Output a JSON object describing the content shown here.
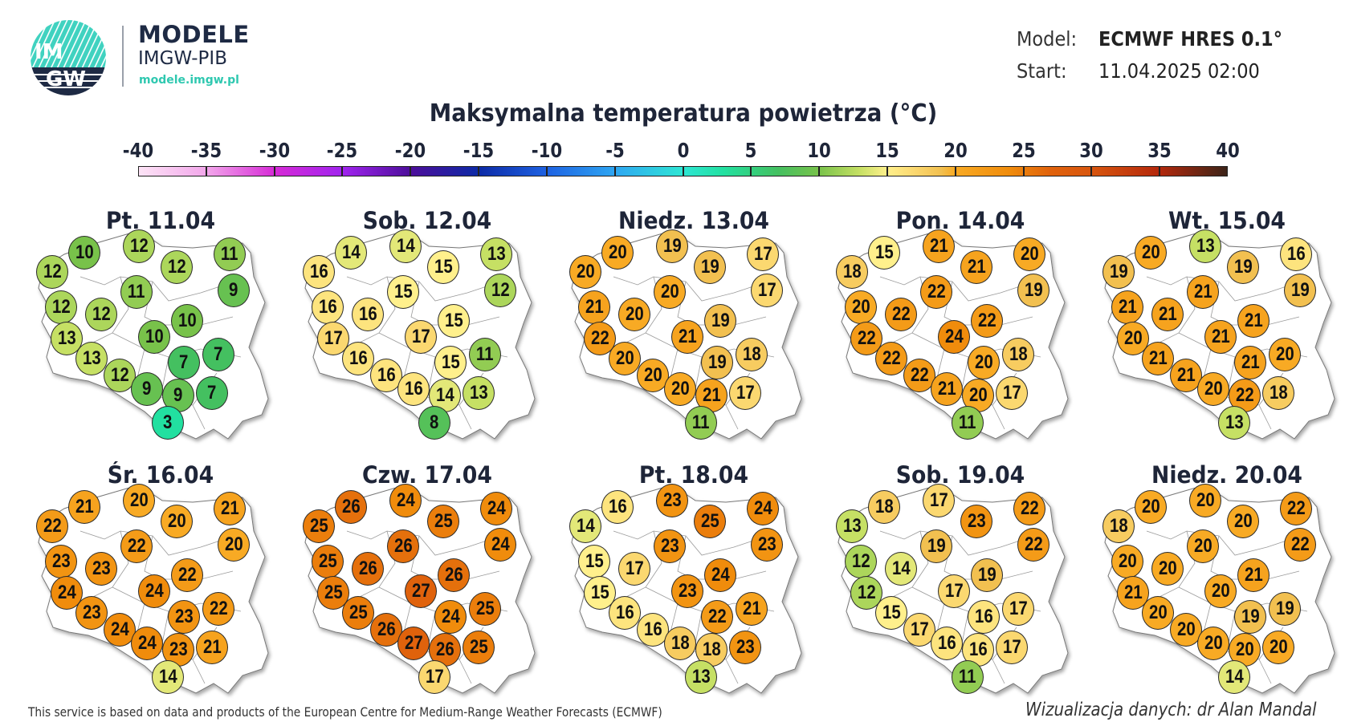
{
  "brand": {
    "logo_text_top": "IM",
    "logo_text_bottom": "GW",
    "title": "MODELE",
    "subtitle": "IMGW-PIB",
    "url": "modele.imgw.pl",
    "colors": {
      "navy": "#1e2a44",
      "teal": "#40d2c0"
    }
  },
  "meta": {
    "model_label": "Model:",
    "model_value": "ECMWF HRES 0.1°",
    "start_label": "Start:",
    "start_value": "11.04.2025 02:00"
  },
  "chart_data": {
    "type": "map-station-values",
    "title": "Maksymalna temperatura powietrza (°C)",
    "colorbar": {
      "range": [
        -40,
        40
      ],
      "ticks": [
        "-40",
        "-35",
        "-30",
        "-25",
        "-20",
        "-15",
        "-10",
        "-5",
        "0",
        "5",
        "10",
        "15",
        "20",
        "25",
        "30",
        "35",
        "40"
      ],
      "stops": [
        {
          "v": -40,
          "c": "#fde4f6"
        },
        {
          "v": -35,
          "c": "#f2a6ea"
        },
        {
          "v": -30,
          "c": "#d62ad6"
        },
        {
          "v": -25,
          "c": "#a024ee"
        },
        {
          "v": -20,
          "c": "#4c0e9a"
        },
        {
          "v": -15,
          "c": "#0c2aa6"
        },
        {
          "v": -10,
          "c": "#1e62e2"
        },
        {
          "v": -5,
          "c": "#2ea6f2"
        },
        {
          "v": 0,
          "c": "#2ee6d4"
        },
        {
          "v": 3,
          "c": "#22e0a0"
        },
        {
          "v": 7,
          "c": "#44c060"
        },
        {
          "v": 10,
          "c": "#78c24a"
        },
        {
          "v": 13,
          "c": "#c6e064"
        },
        {
          "v": 15,
          "c": "#fff08c"
        },
        {
          "v": 17,
          "c": "#fbd870"
        },
        {
          "v": 19,
          "c": "#f2c050"
        },
        {
          "v": 20,
          "c": "#f8aa24"
        },
        {
          "v": 24,
          "c": "#f08c0c"
        },
        {
          "v": 27,
          "c": "#e0620c"
        },
        {
          "v": 30,
          "c": "#d8560e"
        },
        {
          "v": 35,
          "c": "#b4280c"
        },
        {
          "v": 40,
          "c": "#3c2418"
        }
      ]
    },
    "maps": [
      {
        "title": "Pt. 11.04",
        "values": [
          12,
          10,
          12,
          12,
          11,
          9,
          11,
          12,
          12,
          10,
          10,
          13,
          13,
          12,
          9,
          9,
          7,
          7,
          7,
          3
        ]
      },
      {
        "title": "Sob. 12.04",
        "values": [
          16,
          14,
          14,
          15,
          13,
          12,
          15,
          16,
          16,
          15,
          17,
          17,
          16,
          16,
          16,
          14,
          15,
          11,
          13,
          8
        ]
      },
      {
        "title": "Niedz. 13.04",
        "values": [
          20,
          20,
          19,
          19,
          17,
          17,
          20,
          21,
          20,
          19,
          21,
          22,
          20,
          20,
          20,
          21,
          19,
          18,
          17,
          11
        ]
      },
      {
        "title": "Pon. 14.04",
        "values": [
          18,
          15,
          21,
          21,
          20,
          19,
          22,
          20,
          22,
          22,
          24,
          22,
          22,
          22,
          21,
          20,
          20,
          18,
          17,
          11
        ]
      },
      {
        "title": "Wt. 15.04",
        "values": [
          19,
          20,
          13,
          19,
          16,
          19,
          21,
          21,
          21,
          21,
          21,
          20,
          21,
          21,
          20,
          22,
          21,
          20,
          18,
          13
        ]
      },
      {
        "title": "Śr. 16.04",
        "values": [
          22,
          21,
          20,
          20,
          21,
          20,
          22,
          23,
          23,
          22,
          24,
          24,
          23,
          24,
          24,
          23,
          23,
          22,
          21,
          14
        ]
      },
      {
        "title": "Czw. 17.04",
        "values": [
          25,
          26,
          24,
          25,
          24,
          24,
          26,
          25,
          26,
          26,
          27,
          25,
          25,
          26,
          27,
          26,
          24,
          25,
          25,
          17
        ]
      },
      {
        "title": "Pt. 18.04",
        "values": [
          14,
          16,
          23,
          25,
          24,
          23,
          23,
          15,
          17,
          24,
          23,
          15,
          16,
          16,
          18,
          18,
          22,
          21,
          23,
          13
        ]
      },
      {
        "title": "Sob. 19.04",
        "values": [
          13,
          18,
          17,
          23,
          22,
          22,
          19,
          12,
          14,
          19,
          17,
          12,
          15,
          17,
          16,
          16,
          16,
          17,
          17,
          11
        ]
      },
      {
        "title": "Niedz. 20.04",
        "values": [
          18,
          20,
          20,
          20,
          22,
          22,
          20,
          20,
          20,
          21,
          20,
          21,
          20,
          20,
          20,
          20,
          19,
          19,
          20,
          14
        ]
      }
    ]
  },
  "footer": {
    "source": "This service is based on data and products of the European Centre for Medium-Range Weather Forecasts (ECMWF)",
    "credit": "Wizualizacja danych: dr Alan Mandal"
  }
}
